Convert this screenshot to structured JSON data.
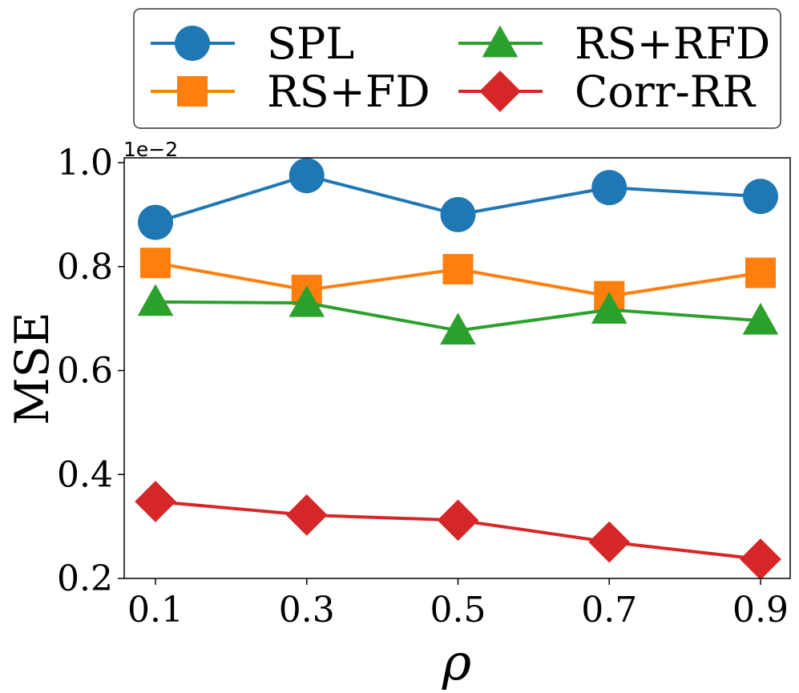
{
  "chart_data": {
    "type": "line",
    "title": "",
    "xlabel": "ρ",
    "ylabel": "MSE",
    "scale_label": "1e−2",
    "x": [
      0.1,
      0.3,
      0.5,
      0.7,
      0.9
    ],
    "x_tick_labels": [
      "0.1",
      "0.3",
      "0.5",
      "0.7",
      "0.9"
    ],
    "y_ticks": [
      0.2,
      0.4,
      0.6,
      0.8,
      1.0
    ],
    "y_tick_labels": [
      "0.2",
      "0.4",
      "0.6",
      "0.8",
      "1.0"
    ],
    "xlim": [
      0.06,
      0.94
    ],
    "ylim": [
      0.2,
      1.01
    ],
    "legend_position": "top, outside plot, two columns",
    "series": [
      {
        "name": "SPL",
        "color": "#1f77b4",
        "marker": "circle",
        "values": [
          0.885,
          0.975,
          0.9,
          0.952,
          0.935
        ]
      },
      {
        "name": "RS+FD",
        "color": "#ff7f0e",
        "marker": "square",
        "values": [
          0.807,
          0.755,
          0.795,
          0.743,
          0.788
        ]
      },
      {
        "name": "RS+RFD",
        "color": "#2ca02c",
        "marker": "triangle",
        "values": [
          0.732,
          0.73,
          0.677,
          0.717,
          0.696
        ]
      },
      {
        "name": "Corr-RR",
        "color": "#d62728",
        "marker": "diamond",
        "values": [
          0.348,
          0.322,
          0.312,
          0.27,
          0.237
        ]
      }
    ]
  }
}
